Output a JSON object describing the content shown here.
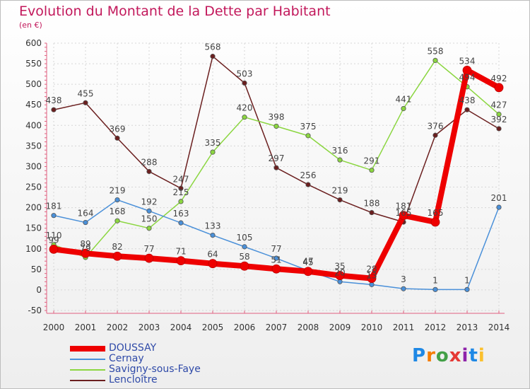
{
  "header": {
    "title": "Evolution du Montant de la Dette par Habitant",
    "subtitle": "(en €)"
  },
  "logo": {
    "text": "Proxiti",
    "letters": [
      "P",
      "r",
      "o",
      "x",
      "i",
      "t",
      "i"
    ],
    "colors": [
      "#1e88e5",
      "#f57c00",
      "#43a047",
      "#e53935",
      "#8e24aa",
      "#1e88e5",
      "#fbc02d"
    ]
  },
  "chart_data": {
    "type": "line",
    "title": "Evolution du Montant de la Dette par Habitant",
    "subtitle": "(en €)",
    "xlabel": "",
    "ylabel": "",
    "ylim": [
      -50,
      600
    ],
    "yticks": [
      -50,
      0,
      50,
      100,
      150,
      200,
      250,
      300,
      350,
      400,
      450,
      500,
      550,
      600
    ],
    "x": [
      "2000",
      "2001",
      "2002",
      "2003",
      "2004",
      "2005",
      "2006",
      "2007",
      "2008",
      "2009",
      "2010",
      "2011",
      "2012",
      "2013",
      "2014"
    ],
    "grid": true,
    "legend_position": "bottom-left",
    "series": [
      {
        "name": "Lencloître",
        "color": "#6b1f1f",
        "values": [
          438,
          455,
          369,
          288,
          247,
          568,
          503,
          297,
          256,
          219,
          188,
          165,
          376,
          438,
          392
        ]
      },
      {
        "name": "Savigny-sous-Faye",
        "color": "#8bd640",
        "values": [
          110,
          79,
          168,
          150,
          215,
          335,
          420,
          398,
          375,
          316,
          291,
          441,
          558,
          494,
          427
        ]
      },
      {
        "name": "Cernay",
        "color": "#4a90d9",
        "values": [
          181,
          164,
          219,
          192,
          163,
          133,
          105,
          77,
          47,
          20,
          13,
          3,
          1,
          1,
          201
        ]
      },
      {
        "name": "DOUSSAY",
        "color": "#ee0000",
        "values": [
          99,
          89,
          82,
          77,
          71,
          64,
          58,
          51,
          45,
          35,
          28,
          181,
          165,
          534,
          492
        ]
      }
    ]
  }
}
